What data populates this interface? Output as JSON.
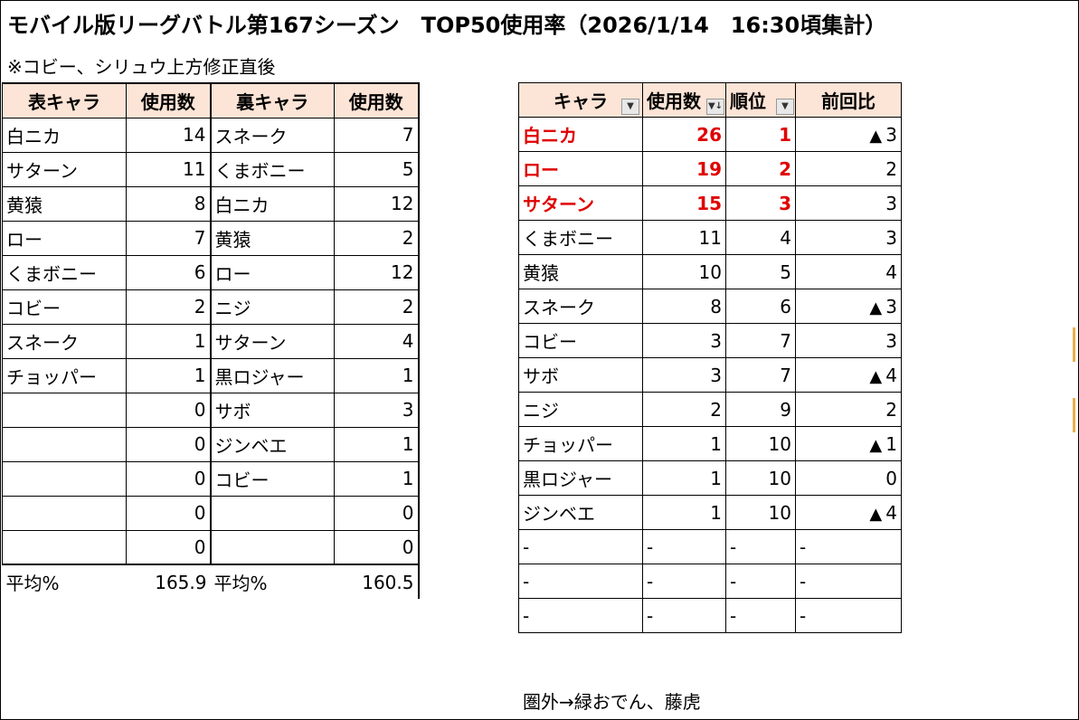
{
  "title": "モバイル版リーグバトル第167シーズン　TOP50使用率（2026/1/14　16:30頃集計）",
  "subtitle": "※コビー、シリュウ上方修正直後",
  "left_table": {
    "headers": [
      "表キャラ",
      "使用数",
      "裏キャラ",
      "使用数"
    ],
    "rows": [
      [
        "白ニカ",
        "14",
        "スネーク",
        "7"
      ],
      [
        "サターン",
        "11",
        "くまボニー",
        "5"
      ],
      [
        "黄猿",
        "8",
        "白ニカ",
        "12"
      ],
      [
        "ロー",
        "7",
        "黄猿",
        "2"
      ],
      [
        "くまボニー",
        "6",
        "ロー",
        "12"
      ],
      [
        "コビー",
        "2",
        "ニジ",
        "2"
      ],
      [
        "スネーク",
        "1",
        "サターン",
        "4"
      ],
      [
        "チョッパー",
        "1",
        "黒ロジャー",
        "1"
      ],
      [
        "",
        "0",
        "サボ",
        "3"
      ],
      [
        "",
        "0",
        "ジンベエ",
        "1"
      ],
      [
        "",
        "0",
        "コビー",
        "1"
      ],
      [
        "",
        "0",
        "",
        "0"
      ],
      [
        "",
        "0",
        "",
        "0"
      ]
    ],
    "avg": [
      "平均%",
      "165.9",
      "平均%",
      "160.5"
    ]
  },
  "right_table": {
    "headers": [
      "キャラ",
      "使用数",
      "順位",
      "前回比"
    ],
    "rows": [
      {
        "name": "白ニカ",
        "count": "26",
        "rank": "1",
        "tri": "▲",
        "diff": "3",
        "highlight": true
      },
      {
        "name": "ロー",
        "count": "19",
        "rank": "2",
        "tri": "",
        "diff": "2",
        "highlight": true
      },
      {
        "name": "サターン",
        "count": "15",
        "rank": "3",
        "tri": "",
        "diff": "3",
        "highlight": true
      },
      {
        "name": "くまボニー",
        "count": "11",
        "rank": "4",
        "tri": "",
        "diff": "3",
        "highlight": false
      },
      {
        "name": "黄猿",
        "count": "10",
        "rank": "5",
        "tri": "",
        "diff": "4",
        "highlight": false
      },
      {
        "name": "スネーク",
        "count": "8",
        "rank": "6",
        "tri": "▲",
        "diff": "3",
        "highlight": false
      },
      {
        "name": "コビー",
        "count": "3",
        "rank": "7",
        "tri": "",
        "diff": "3",
        "highlight": false
      },
      {
        "name": "サボ",
        "count": "3",
        "rank": "7",
        "tri": "▲",
        "diff": "4",
        "highlight": false
      },
      {
        "name": "ニジ",
        "count": "2",
        "rank": "9",
        "tri": "",
        "diff": "2",
        "highlight": false
      },
      {
        "name": "チョッパー",
        "count": "1",
        "rank": "10",
        "tri": "▲",
        "diff": "1",
        "highlight": false
      },
      {
        "name": "黒ロジャー",
        "count": "1",
        "rank": "10",
        "tri": "",
        "diff": "0",
        "highlight": false
      },
      {
        "name": "ジンベエ",
        "count": "1",
        "rank": "10",
        "tri": "▲",
        "diff": "4",
        "highlight": false
      },
      {
        "name": "-",
        "count": "-",
        "rank": "-",
        "tri": "",
        "diff": "-",
        "highlight": false,
        "dash": true
      },
      {
        "name": "-",
        "count": "-",
        "rank": "-",
        "tri": "",
        "diff": "-",
        "highlight": false,
        "dash": true
      },
      {
        "name": "-",
        "count": "-",
        "rank": "-",
        "tri": "",
        "diff": "-",
        "highlight": false,
        "dash": true
      }
    ],
    "filter_icons": [
      "filter-dropdown-icon",
      "sort-descending-icon",
      "filter-dropdown-icon"
    ]
  },
  "footnote": "圏外→緑おでん、藤虎",
  "colors": {
    "header_bg": "#fce4d6",
    "highlight": "#e00000",
    "edge_mark": "#e8b04a"
  }
}
